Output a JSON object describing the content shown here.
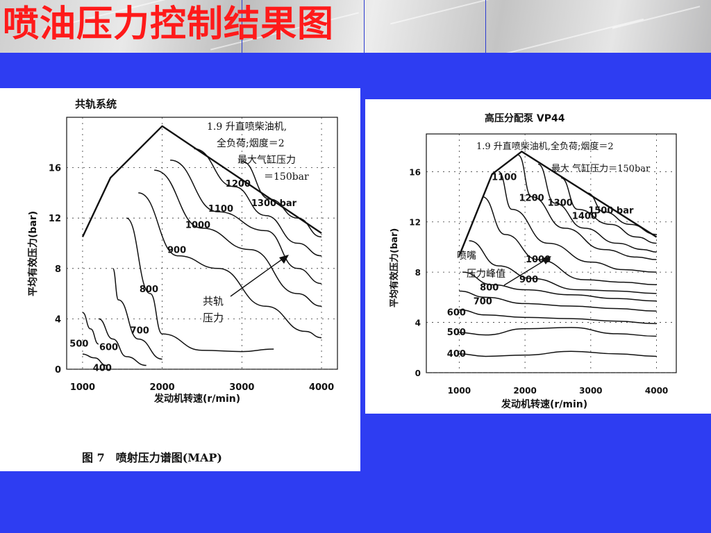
{
  "slide": {
    "title": "喷油压力控制结果图",
    "background_color": "#2e3df2",
    "title_color": "#ff1a1a"
  },
  "chart_data": [
    {
      "type": "line",
      "title": "共轨系统",
      "xlabel": "发动机转速(r/min)",
      "ylabel": "平均有效压力(bar)",
      "xlim": [
        800,
        4200
      ],
      "ylim": [
        0,
        20
      ],
      "xticks": [
        "1000",
        "2000",
        "3000",
        "4000"
      ],
      "yticks": [
        "0",
        "4",
        "8",
        "12",
        "16"
      ],
      "annotation_lines": [
        "1.9 升直喷柴油机,",
        "全负荷;烟度＝2",
        "最大气缸压力",
        "＝150bar"
      ],
      "arrow_label_lines": [
        "共轨",
        "压力"
      ],
      "caption": "图 7　喷射压力谱图(MAP)",
      "envelope": {
        "x": [
          1000,
          1350,
          2000,
          4000
        ],
        "y": [
          10.5,
          15.2,
          19.3,
          10.8
        ]
      },
      "series": [
        {
          "label": "400",
          "x": [
            1000,
            1150,
            1300
          ],
          "y": [
            1.2,
            0.9,
            0.3
          ]
        },
        {
          "label": "500",
          "x": [
            1000,
            1100,
            1200
          ],
          "y": [
            4.5,
            3.2,
            2.0
          ]
        },
        {
          "label": "600",
          "x": [
            1200,
            1380,
            1550,
            1800
          ],
          "y": [
            4.0,
            2.4,
            1.0,
            0.3
          ]
        },
        {
          "label": "700",
          "x": [
            1380,
            1450,
            1700,
            2000
          ],
          "y": [
            8.0,
            5.5,
            2.4,
            0.8
          ]
        },
        {
          "label": "800",
          "x": [
            1550,
            1850,
            2000,
            2500,
            3000,
            3400
          ],
          "y": [
            12.0,
            6.0,
            2.8,
            1.5,
            1.4,
            1.6
          ]
        },
        {
          "label": "900",
          "x": [
            1700,
            2200,
            2700,
            3300,
            3800,
            4000
          ],
          "y": [
            14.0,
            9.0,
            8.0,
            5.0,
            3.0,
            2.5
          ]
        },
        {
          "label": "1000",
          "x": [
            1900,
            2500,
            3100,
            3700,
            4000
          ],
          "y": [
            15.8,
            11.2,
            9.5,
            6.0,
            5.0
          ]
        },
        {
          "label": "1100",
          "x": [
            2100,
            2700,
            3300,
            3700,
            4000
          ],
          "y": [
            16.6,
            12.5,
            11.0,
            8.0,
            6.8
          ]
        },
        {
          "label": "1200",
          "x": [
            2400,
            2900,
            3300,
            3700,
            4000
          ],
          "y": [
            17.5,
            14.5,
            12.2,
            10.0,
            9.0
          ]
        },
        {
          "label": "1300 bar",
          "x": [
            3000,
            3350,
            3700,
            4000
          ],
          "y": [
            16.5,
            13.5,
            12.0,
            10.5
          ]
        }
      ]
    },
    {
      "type": "line",
      "title": "高压分配泵 VP44",
      "xlabel": "发动机转速(r/min)",
      "ylabel": "平均有效压力(bar)",
      "xlim": [
        500,
        4300
      ],
      "ylim": [
        0,
        19
      ],
      "xticks": [
        "1000",
        "2000",
        "3000",
        "4000"
      ],
      "yticks": [
        "0",
        "4",
        "8",
        "12",
        "16"
      ],
      "annotation_lines": [
        "1.9 升直喷柴油机,全负荷;烟度＝2",
        "最大 气缸压力＝150bar"
      ],
      "arrow_label_lines": [
        "喷嘴",
        "压力峰值"
      ],
      "envelope": {
        "x": [
          1000,
          1500,
          1950,
          4000
        ],
        "y": [
          9.3,
          15.8,
          17.6,
          10.8
        ]
      },
      "series": [
        {
          "label": "400",
          "x": [
            1000,
            1400,
            2000,
            2700,
            3400,
            4000
          ],
          "y": [
            1.5,
            1.3,
            1.4,
            1.7,
            1.5,
            1.3
          ]
        },
        {
          "label": "500",
          "x": [
            1000,
            1400,
            2000,
            2700,
            3400,
            4000
          ],
          "y": [
            3.2,
            3.0,
            3.5,
            3.6,
            3.1,
            2.9
          ]
        },
        {
          "label": "600",
          "x": [
            1000,
            1400,
            2000,
            2700,
            3400,
            4000
          ],
          "y": [
            5.0,
            4.6,
            4.4,
            4.3,
            4.1,
            3.9
          ]
        },
        {
          "label": "700",
          "x": [
            1000,
            1400,
            2000,
            2700,
            3400,
            4000
          ],
          "y": [
            6.5,
            6.0,
            5.5,
            5.3,
            5.1,
            4.9
          ]
        },
        {
          "label": "800",
          "x": [
            1050,
            1500,
            2000,
            2700,
            3400,
            4000
          ],
          "y": [
            8.0,
            7.0,
            6.6,
            6.2,
            5.9,
            5.7
          ]
        },
        {
          "label": "900",
          "x": [
            1150,
            1600,
            2100,
            2800,
            3400,
            4000
          ],
          "y": [
            10.5,
            8.5,
            7.5,
            6.6,
            6.5,
            6.3
          ]
        },
        {
          "label": "1000",
          "x": [
            1350,
            1700,
            2200,
            2900,
            3500,
            4000
          ],
          "y": [
            14.0,
            11.0,
            9.0,
            7.4,
            7.2,
            7.0
          ]
        },
        {
          "label": "1100",
          "x": [
            1600,
            1800,
            2350,
            3000,
            3500,
            4000
          ],
          "y": [
            16.0,
            13.0,
            10.3,
            8.8,
            8.2,
            8.0
          ]
        },
        {
          "label": "1200",
          "x": [
            1900,
            2100,
            2600,
            3200,
            3700,
            4000
          ],
          "y": [
            17.3,
            14.0,
            11.5,
            9.8,
            9.2,
            9.0
          ]
        },
        {
          "label": "1300",
          "x": [
            2200,
            2450,
            2900,
            3400,
            3800,
            4000
          ],
          "y": [
            16.6,
            13.5,
            11.5,
            10.3,
            9.8,
            9.6
          ]
        },
        {
          "label": "1400",
          "x": [
            2550,
            2800,
            3300,
            3700,
            4000
          ],
          "y": [
            15.5,
            13.0,
            11.8,
            10.8,
            10.3
          ]
        },
        {
          "label": "1500 bar",
          "x": [
            2950,
            3200,
            3600,
            4000
          ],
          "y": [
            14.3,
            12.8,
            11.8,
            11.0
          ]
        }
      ]
    }
  ]
}
